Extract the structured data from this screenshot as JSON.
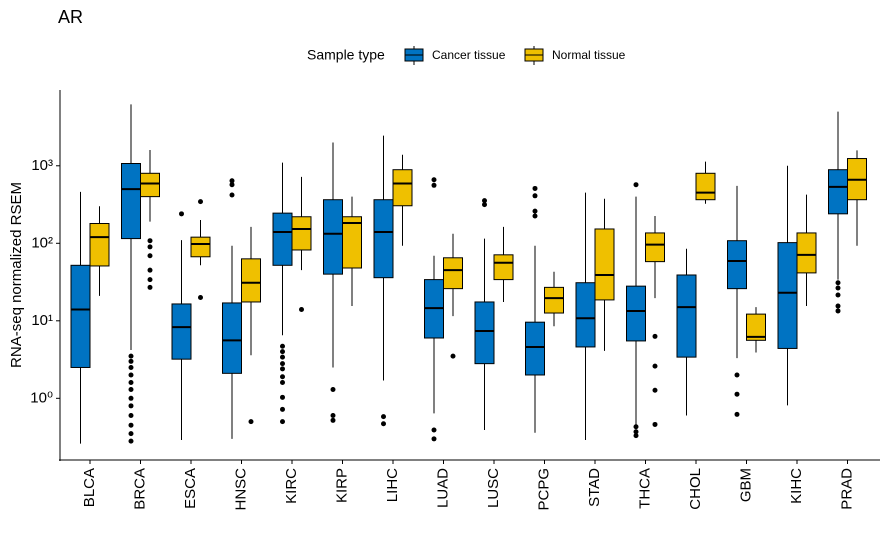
{
  "chart_data": {
    "type": "boxplot",
    "title": "AR",
    "ylabel": "RNA-seq normalized RSEM",
    "legend_title": "Sample type",
    "legend_position": "top",
    "log_y": true,
    "ylim": [
      0.16,
      9500
    ],
    "yticks": [
      {
        "value": 1,
        "label": "10⁰"
      },
      {
        "value": 10,
        "label": "10¹"
      },
      {
        "value": 100,
        "label": "10²"
      },
      {
        "value": 1000,
        "label": "10³"
      }
    ],
    "categories": [
      "BLCA",
      "BRCA",
      "ESCA",
      "HNSC",
      "KIRC",
      "KIRP",
      "LIHC",
      "LUAD",
      "LUSC",
      "PCPG",
      "STAD",
      "THCA",
      "CHOL",
      "GBM",
      "KIHC",
      "PRAD"
    ],
    "series": [
      {
        "name": "Cancer tissue",
        "color": "#0073C2",
        "whisker_low": [
          0.26,
          4.2,
          0.29,
          0.3,
          6.5,
          2.5,
          1.7,
          0.64,
          0.39,
          0.36,
          0.29,
          0.46,
          0.6,
          3.3,
          0.81,
          34
        ],
        "q1": [
          2.5,
          115,
          3.2,
          2.1,
          52,
          40,
          36,
          6,
          2.8,
          2.0,
          4.6,
          5.5,
          3.4,
          26,
          4.4,
          240
        ],
        "median": [
          14,
          500,
          8.3,
          5.6,
          140,
          133,
          140,
          14.6,
          7.4,
          4.6,
          10.8,
          13.4,
          15,
          59,
          23,
          535
        ],
        "q3": [
          52,
          1070,
          16.5,
          17,
          245,
          365,
          365,
          34,
          17.5,
          9.6,
          31,
          28,
          39,
          108,
          102,
          890
        ],
        "whisker_high": [
          460,
          6200,
          110,
          93,
          1100,
          2000,
          2450,
          69,
          115,
          93,
          450,
          400,
          85,
          550,
          1000,
          5000
        ],
        "outliers": [
          [],
          [
            3.5,
            3,
            2.5,
            2,
            1.6,
            1.3,
            1.0,
            0.8,
            0.6,
            0.45,
            0.35,
            0.28
          ],
          [
            240
          ],
          [
            640,
            570,
            420
          ],
          [
            4.7,
            4,
            3.4,
            2.8,
            2.4,
            1.9,
            1.6,
            1.03,
            0.72,
            0.5
          ],
          [
            1.3,
            0.6,
            0.52
          ],
          [
            0.58,
            0.47
          ],
          [
            660,
            560,
            0.39,
            0.3
          ],
          [
            355,
            315
          ],
          [
            510,
            410,
            260,
            225
          ],
          [],
          [
            570,
            0.43,
            0.37,
            0.33
          ],
          [],
          [
            2.0,
            1.13,
            0.62
          ],
          [],
          [
            31,
            26.5,
            21.5,
            15.5,
            13.4
          ]
        ]
      },
      {
        "name": "Normal tissue",
        "color": "#EFC000",
        "whisker_low": [
          21,
          190,
          52,
          3.6,
          45,
          15.5,
          93,
          11.5,
          17.5,
          8.5,
          4.1,
          19.6,
          324,
          3.9,
          15.5,
          93
        ],
        "q1": [
          51,
          400,
          67,
          17.5,
          82,
          48,
          305,
          26,
          34,
          12.6,
          18.6,
          58,
          365,
          5.6,
          41.5,
          365
        ],
        "median": [
          120,
          590,
          98,
          31,
          153,
          183,
          590,
          45,
          56,
          19.6,
          39,
          96,
          450,
          6.2,
          71,
          660
        ],
        "q3": [
          180,
          800,
          120,
          63,
          220,
          220,
          890,
          65,
          71,
          27,
          153,
          136,
          800,
          12.2,
          136,
          1240
        ],
        "whisker_high": [
          300,
          1600,
          200,
          163,
          720,
          400,
          1390,
          133,
          163,
          43,
          375,
          225,
          1130,
          15,
          425,
          1580
        ],
        "outliers": [
          [],
          [
            108,
            90,
            69,
            45,
            34,
            27
          ],
          [
            345,
            20
          ],
          [
            0.5
          ],
          [
            14
          ],
          [],
          [],
          [
            3.5
          ],
          [],
          [],
          [],
          [
            6.3,
            2.6,
            1.27,
            0.46
          ],
          [],
          [],
          [],
          []
        ]
      }
    ]
  }
}
